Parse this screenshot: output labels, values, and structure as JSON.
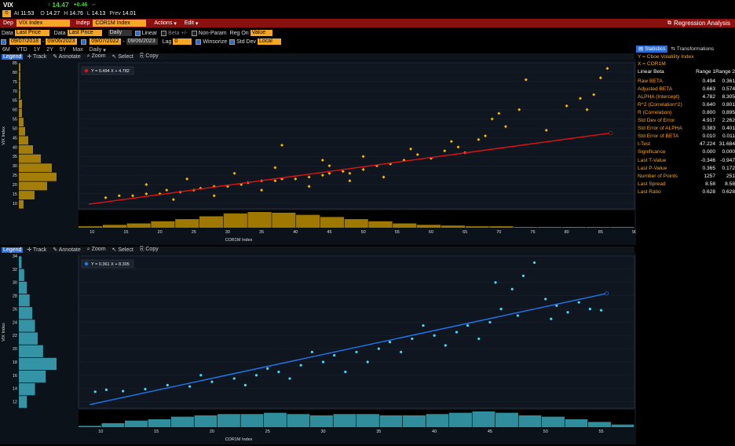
{
  "quote": {
    "ticker": "VIX",
    "last": "14.47",
    "change": "+0.46",
    "time_label": "At",
    "time": "11:53",
    "open_label": "O",
    "open": "14.27",
    "high_label": "H",
    "high": "14.76",
    "low_label": "L",
    "low": "14.13",
    "prev_label": "Prev",
    "prev": "14.01"
  },
  "menu": {
    "dep_label": "Dep",
    "dep_value": "VIX Index",
    "indep_label": "Indep",
    "indep_value": "COR1M Index",
    "actions": "Actions",
    "edit": "Edit",
    "title": "Regression Analysis"
  },
  "params": {
    "data_label": "Data",
    "dep_field": "Last Price",
    "indep_field": "Last Price",
    "period": "Daily",
    "linear": "Linear",
    "beta": "Beta +/-",
    "nonparam": "Non-Param",
    "reg_on": "Reg On",
    "reg_value": "Value",
    "start1": "09/07/2018",
    "end1": "09/06/2023",
    "start2": "09/07/2022",
    "end2": "09/06/2023",
    "lag_label": "Lag",
    "lag_value": "0",
    "winsorize": "Winsorize",
    "stddev": "Std Dev",
    "local": "Local"
  },
  "ranges": [
    "6M",
    "YTD",
    "1Y",
    "2Y",
    "5Y",
    "Max",
    "Daily"
  ],
  "tools": [
    "Legend",
    "Track",
    "Annotate",
    "Zoom",
    "Select",
    "Copy"
  ],
  "chart_data": [
    {
      "type": "scatter",
      "legend": "Y = 0.494 X + 4.782",
      "xlabel": "COR1M Index",
      "ylabel": "VIX Index",
      "xlim": [
        8,
        90
      ],
      "ylim": [
        7,
        85
      ],
      "xticks": [
        10,
        15,
        20,
        25,
        30,
        35,
        40,
        45,
        50,
        55,
        60,
        65,
        70,
        75,
        80,
        85,
        90
      ],
      "yticks": [
        10,
        15,
        20,
        25,
        30,
        35,
        40,
        45,
        50,
        55,
        60,
        65,
        70,
        75,
        80,
        85
      ],
      "slope": 0.494,
      "intercept": 4.782,
      "fit_range": [
        9.5,
        86.5
      ],
      "point_color": "#f5b800",
      "line_color": "#e21212",
      "points": [
        [
          12.0,
          13.0
        ],
        [
          14.0,
          14.0
        ],
        [
          16.0,
          14.0
        ],
        [
          18.0,
          15.0
        ],
        [
          20.0,
          15.0
        ],
        [
          21.0,
          17.0
        ],
        [
          23.0,
          16.0
        ],
        [
          25.0,
          17.0
        ],
        [
          26.0,
          18.0
        ],
        [
          28.0,
          19.0
        ],
        [
          30.0,
          19.0
        ],
        [
          32.0,
          20.0
        ],
        [
          33.0,
          21.0
        ],
        [
          35.0,
          22.0
        ],
        [
          37.0,
          22.0
        ],
        [
          38.0,
          23.0
        ],
        [
          40.0,
          23.0
        ],
        [
          42.0,
          24.0
        ],
        [
          44.0,
          25.0
        ],
        [
          45.0,
          26.0
        ],
        [
          47.0,
          27.0
        ],
        [
          48.0,
          26.0
        ],
        [
          50.0,
          28.0
        ],
        [
          52.0,
          30.0
        ],
        [
          54.0,
          31.0
        ],
        [
          56.0,
          33.0
        ],
        [
          58.0,
          36.0
        ],
        [
          60.0,
          34.0
        ],
        [
          62.0,
          38.0
        ],
        [
          64.0,
          40.0
        ],
        [
          65.0,
          37.0
        ],
        [
          67.0,
          44.0
        ],
        [
          68.0,
          46.0
        ],
        [
          69.0,
          55.0
        ],
        [
          70.0,
          58.0
        ],
        [
          71.0,
          51.0
        ],
        [
          73.0,
          60.0
        ],
        [
          74.0,
          76.0
        ],
        [
          77.0,
          49.0
        ],
        [
          80.0,
          62.0
        ],
        [
          82.0,
          66.0
        ],
        [
          83.0,
          60.0
        ],
        [
          84.0,
          68.0
        ],
        [
          85.0,
          77.0
        ],
        [
          86.0,
          82.0
        ],
        [
          22.0,
          12.0
        ],
        [
          28.0,
          14.0
        ],
        [
          35.0,
          17.0
        ],
        [
          42.0,
          19.0
        ],
        [
          48.0,
          22.0
        ],
        [
          53.0,
          24.0
        ],
        [
          18.0,
          20.0
        ],
        [
          24.0,
          23.0
        ],
        [
          31.0,
          26.0
        ],
        [
          37.0,
          29.0
        ],
        [
          44.0,
          33.0
        ],
        [
          50.0,
          35.0
        ],
        [
          57.0,
          39.0
        ],
        [
          63.0,
          43.0
        ],
        [
          38.0,
          41.0
        ],
        [
          45.0,
          30.0
        ]
      ],
      "hist_y": [
        3,
        10,
        18,
        24,
        21,
        14,
        9,
        6,
        4,
        3,
        2,
        2,
        1,
        1,
        1,
        1
      ],
      "hist_x": [
        2,
        4,
        6,
        9,
        12,
        16,
        20,
        22,
        21,
        18,
        15,
        12,
        9,
        6,
        4,
        3,
        2,
        2,
        1,
        1,
        1,
        1,
        1
      ]
    },
    {
      "type": "scatter",
      "legend": "Y = 0.361 X + 8.305",
      "xlabel": "COR1M Index",
      "ylabel": "VIX Index",
      "xlim": [
        8,
        58
      ],
      "ylim": [
        11,
        34
      ],
      "xticks": [
        10,
        15,
        20,
        25,
        30,
        35,
        40,
        45,
        50,
        55
      ],
      "yticks": [
        12,
        14,
        16,
        18,
        20,
        22,
        24,
        26,
        28,
        30,
        32,
        34
      ],
      "slope": 0.361,
      "intercept": 8.305,
      "fit_range": [
        9,
        55.5
      ],
      "point_color": "#4ad8f0",
      "line_color": "#1e78f0",
      "points": [
        [
          9.5,
          13.5
        ],
        [
          10.5,
          13.8
        ],
        [
          12.0,
          13.6
        ],
        [
          14.0,
          13.9
        ],
        [
          16.0,
          14.5
        ],
        [
          18.0,
          14.3
        ],
        [
          20.0,
          15.0
        ],
        [
          22.0,
          15.5
        ],
        [
          24.0,
          16.0
        ],
        [
          25.0,
          17.0
        ],
        [
          26.0,
          16.5
        ],
        [
          28.0,
          17.5
        ],
        [
          30.0,
          18.0
        ],
        [
          31.0,
          19.0
        ],
        [
          33.0,
          19.5
        ],
        [
          35.0,
          20.0
        ],
        [
          36.0,
          21.0
        ],
        [
          38.0,
          21.5
        ],
        [
          40.0,
          22.0
        ],
        [
          42.0,
          22.5
        ],
        [
          43.0,
          23.5
        ],
        [
          45.0,
          24.0
        ],
        [
          46.0,
          26.0
        ],
        [
          47.0,
          29.0
        ],
        [
          48.0,
          31.0
        ],
        [
          49.0,
          33.0
        ],
        [
          50.0,
          27.5
        ],
        [
          51.0,
          26.5
        ],
        [
          52.0,
          25.5
        ],
        [
          54.0,
          26.0
        ],
        [
          55.0,
          25.8
        ],
        [
          23.0,
          14.5
        ],
        [
          27.0,
          15.5
        ],
        [
          29.0,
          19.5
        ],
        [
          34.0,
          18.0
        ],
        [
          39.0,
          23.5
        ],
        [
          41.0,
          20.5
        ],
        [
          44.0,
          21.5
        ],
        [
          45.5,
          30.0
        ],
        [
          47.5,
          25.0
        ],
        [
          50.5,
          24.5
        ],
        [
          53.0,
          27.0
        ],
        [
          19.0,
          16.0
        ],
        [
          32.0,
          16.5
        ],
        [
          37.0,
          19.5
        ]
      ],
      "hist_y": [
        3,
        6,
        10,
        14,
        9,
        7,
        6,
        5,
        4,
        3,
        2,
        1
      ],
      "hist_x": [
        1,
        3,
        5,
        6,
        8,
        9,
        10,
        10,
        11,
        10,
        9,
        10,
        10,
        9,
        9,
        10,
        11,
        12,
        11,
        9,
        8,
        6,
        4,
        2
      ]
    }
  ],
  "sidebar": {
    "tab1": "Statistics",
    "tab2": "Transformations",
    "y_label": "Y = Cboe Volatility Index",
    "x_label": "X = COR1M",
    "method": "Linear Beta",
    "col1": "Range 1",
    "col2": "Range 2",
    "rows": [
      {
        "name": "Raw BETA",
        "r1": "0.494",
        "r2": "0.361"
      },
      {
        "name": "Adjusted BETA",
        "r1": "0.663",
        "r2": "0.574"
      },
      {
        "name": "ALPHA (Intercept)",
        "r1": "4.782",
        "r2": "8.305"
      },
      {
        "name": "R^2 (Correlation^2)",
        "r1": "0.640",
        "r2": "0.801"
      },
      {
        "name": "R (Correlation)",
        "r1": "0.800",
        "r2": "0.895"
      },
      {
        "name": "Std Dev of Error",
        "r1": "4.917",
        "r2": "2.262"
      },
      {
        "name": "Std Error of ALPHA",
        "r1": "0.383",
        "r2": "0.401"
      },
      {
        "name": "Std Error of BETA",
        "r1": "0.010",
        "r2": "0.011"
      },
      {
        "name": "t-Test",
        "r1": "47.224",
        "r2": "31.684"
      },
      {
        "name": "Significance",
        "r1": "0.000",
        "r2": "0.000"
      },
      {
        "name": "Last T-Value",
        "r1": "-0.346",
        "r2": "-0.947"
      },
      {
        "name": "Last P-Value",
        "r1": "0.365",
        "r2": "0.172"
      },
      {
        "name": "Number of Points",
        "r1": "1257",
        "r2": "251"
      },
      {
        "name": "Last Spread",
        "r1": "8.58",
        "r2": "8.58"
      },
      {
        "name": "Last Ratio",
        "r1": "0.628",
        "r2": "0.628"
      }
    ]
  }
}
